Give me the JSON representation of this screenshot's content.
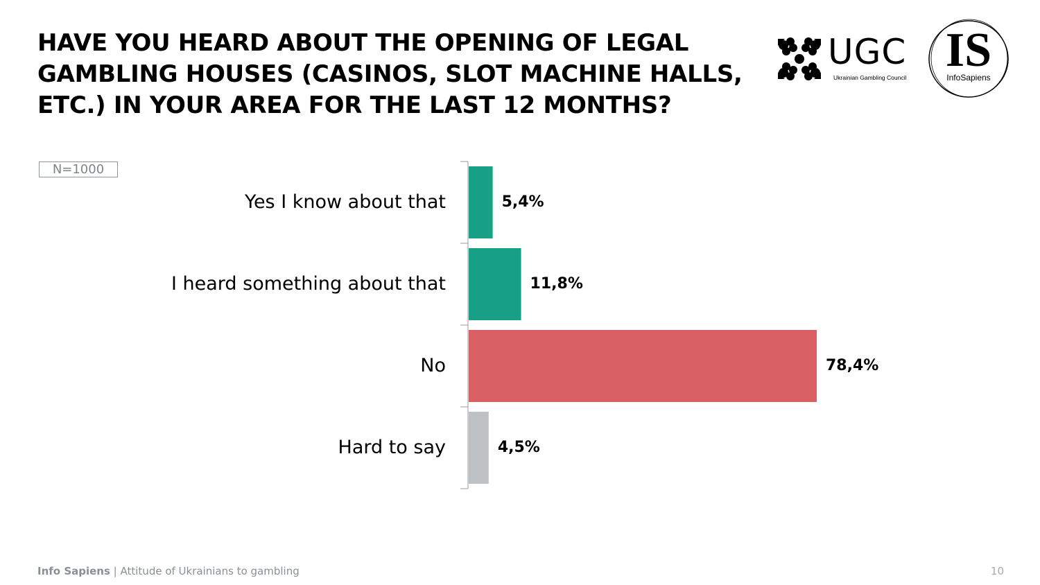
{
  "title_lines": [
    "HAVE YOU HEARD ABOUT THE OPENING OF LEGAL",
    "GAMBLING HOUSES (CASINOS, SLOT MACHINE HALLS,",
    "ETC.) IN YOUR AREA FOR THE LAST 12 MONTHS?"
  ],
  "logos": {
    "ugc_text": "UGC",
    "ugc_subtitle": "Ukrainian Gambling Council",
    "is_text": "IS",
    "is_subtitle": "InfoSapiens"
  },
  "sample_size": "N=1000",
  "chart_data": {
    "type": "bar",
    "orientation": "horizontal",
    "categories": [
      "Yes I know about that",
      "I heard something about that",
      "No",
      "Hard to say"
    ],
    "values": [
      5.4,
      11.8,
      78.4,
      4.5
    ],
    "value_labels": [
      "5,4%",
      "11,8%",
      "78,4%",
      "4,5%"
    ],
    "colors": [
      "#17a085",
      "#17a085",
      "#d96065",
      "#bdc1c4"
    ],
    "unit": "%",
    "xlim": [
      0,
      100
    ],
    "grid": false,
    "legend": "none"
  },
  "footer": {
    "brand": "Info Sapiens",
    "separator": " | ",
    "subtitle": "Attitude of Ukrainians to gambling",
    "page_number": "10"
  }
}
